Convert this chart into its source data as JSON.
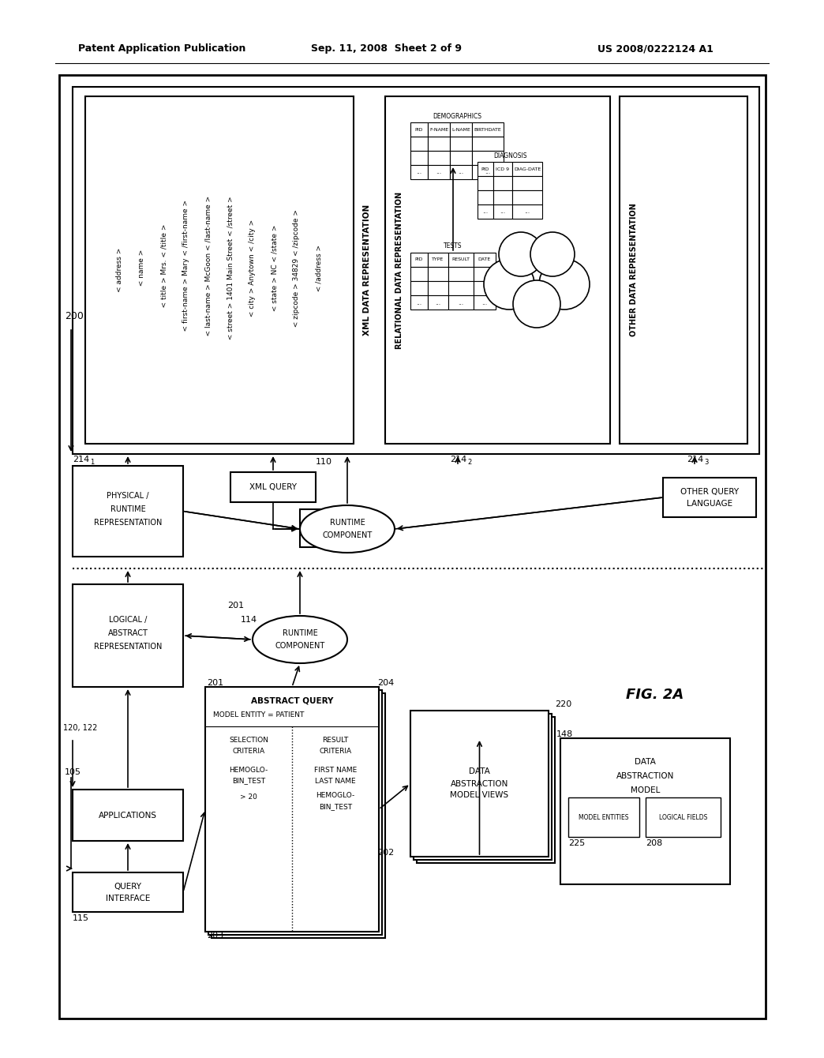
{
  "title_left": "Patent Application Publication",
  "title_mid": "Sep. 11, 2008  Sheet 2 of 9",
  "title_right": "US 2008/0222124 A1",
  "fig_label": "FIG. 2A",
  "bg_color": "#ffffff"
}
